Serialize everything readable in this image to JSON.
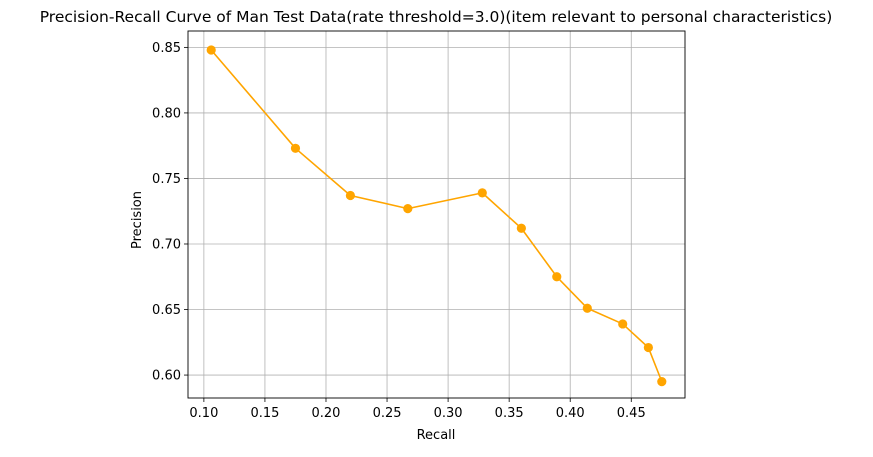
{
  "chart_data": {
    "type": "line",
    "title": "Precision-Recall Curve of Man Test Data(rate threshold=3.0)(item relevant to personal characteristics)",
    "xlabel": "Recall",
    "ylabel": "Precision",
    "xlim": [
      0.087,
      0.494
    ],
    "ylim": [
      0.5825,
      0.8625
    ],
    "xticks": [
      0.1,
      0.15,
      0.2,
      0.25,
      0.3,
      0.35,
      0.4,
      0.45
    ],
    "xtick_labels": [
      "0.10",
      "0.15",
      "0.20",
      "0.25",
      "0.30",
      "0.35",
      "0.40",
      "0.45"
    ],
    "yticks": [
      0.6,
      0.65,
      0.7,
      0.75,
      0.8,
      0.85
    ],
    "ytick_labels": [
      "0.60",
      "0.65",
      "0.70",
      "0.75",
      "0.80",
      "0.85"
    ],
    "grid": true,
    "series": [
      {
        "color": "#ffa500",
        "marker": "circle",
        "x": [
          0.106,
          0.175,
          0.22,
          0.267,
          0.328,
          0.36,
          0.389,
          0.414,
          0.443,
          0.464,
          0.475
        ],
        "y": [
          0.848,
          0.773,
          0.737,
          0.727,
          0.739,
          0.712,
          0.675,
          0.651,
          0.639,
          0.621,
          0.595
        ]
      }
    ]
  }
}
